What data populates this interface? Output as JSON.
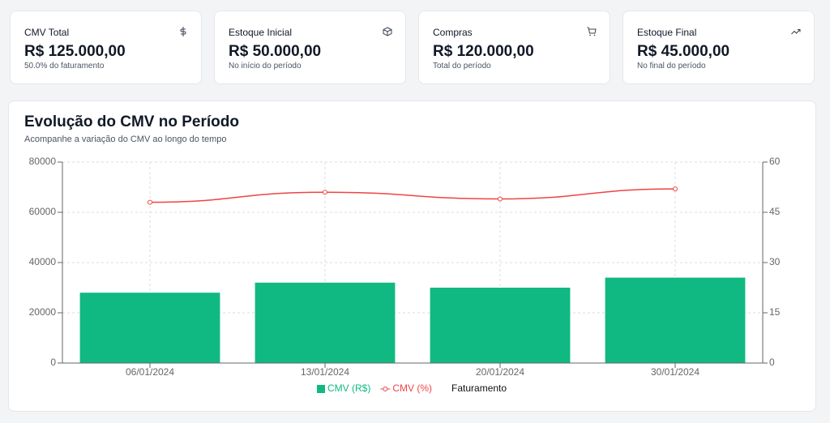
{
  "cards": [
    {
      "title": "CMV Total",
      "value": "R$ 125.000,00",
      "note": "50.0% do faturamento"
    },
    {
      "title": "Estoque Inicial",
      "value": "R$ 50.000,00",
      "note": "No início do período"
    },
    {
      "title": "Compras",
      "value": "R$ 120.000,00",
      "note": "Total do período"
    },
    {
      "title": "Estoque Final",
      "value": "R$ 45.000,00",
      "note": "No final do período"
    }
  ],
  "chart_data": {
    "type": "bar",
    "title": "Evolução do CMV no Período",
    "subtitle": "Acompanhe a variação do CMV ao longo do tempo",
    "categories": [
      "06/01/2024",
      "13/01/2024",
      "20/01/2024",
      "30/01/2024"
    ],
    "series": [
      {
        "name": "CMV (R$)",
        "type": "bar",
        "color": "#10b981",
        "values": [
          28000,
          32000,
          30000,
          34000
        ]
      },
      {
        "name": "CMV (%)",
        "type": "line",
        "axis": "y2",
        "color": "#ef4444",
        "values": [
          48,
          51,
          49,
          52
        ]
      },
      {
        "name": "Faturamento",
        "type": "line",
        "color": "#000000",
        "values": [
          null,
          null,
          null,
          null
        ]
      }
    ],
    "ylim": [
      0,
      80000
    ],
    "yticks": [
      0,
      20000,
      40000,
      60000,
      80000
    ],
    "y2lim": [
      0,
      60
    ],
    "y2ticks": [
      0,
      15,
      30,
      45,
      60
    ],
    "grid": true
  }
}
